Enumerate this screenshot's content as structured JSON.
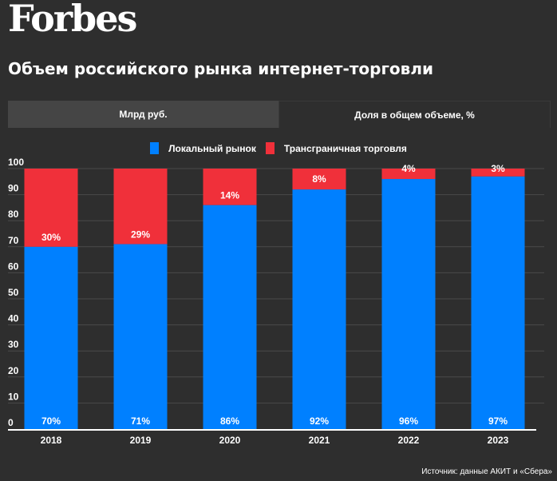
{
  "header": {
    "logo": "Forbes",
    "title": "Объем российского рынка интернет-торговли"
  },
  "tabs": [
    {
      "label": "Млрд руб.",
      "active": false
    },
    {
      "label": "Доля в общем объеме, %",
      "active": true
    }
  ],
  "colors": {
    "local": "#0080ff",
    "crossborder": "#f0303a",
    "background": "#2e2e2e",
    "grid": "#4a4a4a"
  },
  "source": "Источник: данные АКИТ и «Сбера»",
  "chart_data": {
    "type": "bar",
    "stacked": true,
    "title": "Объем российского рынка интернет-торговли",
    "xlabel": "",
    "ylabel": "",
    "ylim": [
      0,
      100
    ],
    "yticks": [
      0,
      10,
      20,
      30,
      40,
      50,
      60,
      70,
      80,
      90,
      100
    ],
    "grid": true,
    "legend_position": "top-center",
    "categories": [
      "2018",
      "2019",
      "2020",
      "2021",
      "2022",
      "2023"
    ],
    "series": [
      {
        "name": "Локальный рынок",
        "color": "#0080ff",
        "values": [
          70,
          71,
          86,
          92,
          96,
          97
        ],
        "labels": [
          "70%",
          "71%",
          "86%",
          "92%",
          "96%",
          "97%"
        ]
      },
      {
        "name": "Трансграничная торговля",
        "color": "#f0303a",
        "values": [
          30,
          29,
          14,
          8,
          4,
          3
        ],
        "labels": [
          "30%",
          "29%",
          "14%",
          "8%",
          "4%",
          "3%"
        ]
      }
    ]
  }
}
